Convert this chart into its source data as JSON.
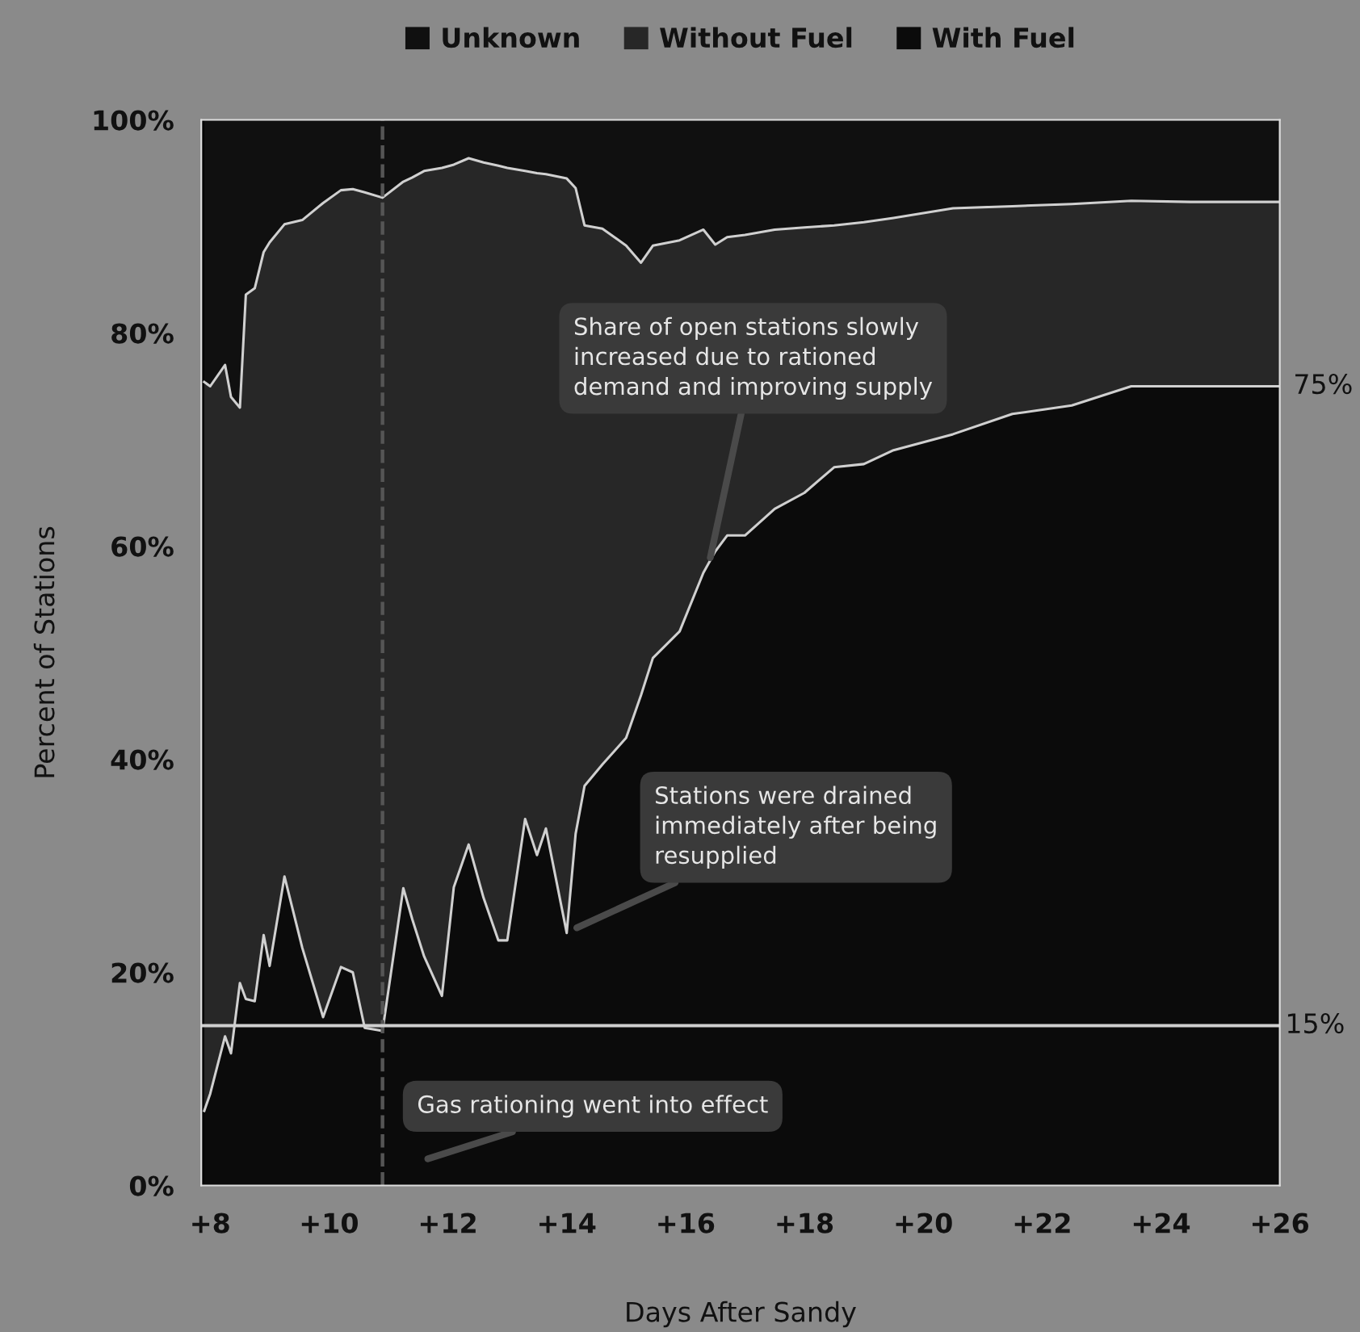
{
  "chart_data": {
    "type": "area",
    "stacked": true,
    "xlabel": "Days After Sandy",
    "ylabel": "Percent of Stations",
    "x": [
      7.9,
      8.0,
      8.25,
      8.35,
      8.5,
      8.6,
      8.75,
      8.9,
      9.0,
      9.25,
      9.55,
      9.9,
      10.2,
      10.4,
      10.6,
      10.9,
      11.25,
      11.4,
      11.6,
      11.9,
      12.1,
      12.35,
      12.6,
      12.85,
      13.0,
      13.3,
      13.5,
      13.65,
      14.0,
      14.15,
      14.3,
      14.6,
      15.0,
      15.25,
      15.45,
      15.9,
      16.3,
      16.5,
      16.7,
      17.0,
      17.5,
      18.0,
      18.5,
      19.0,
      19.5,
      20.5,
      21.5,
      22.5,
      23.5,
      24.5,
      26.0
    ],
    "series": [
      {
        "name": "With Fuel",
        "color": "#0b0b0b",
        "values": [
          7,
          8.6,
          14,
          12.4,
          19,
          17.5,
          17.3,
          23.5,
          20.6,
          29,
          22.3,
          15.8,
          20.5,
          20,
          14.8,
          14.5,
          27.9,
          25,
          21.5,
          17.8,
          28,
          32,
          27,
          23,
          23,
          34.4,
          31,
          33.5,
          23.7,
          33,
          37.5,
          39.5,
          42,
          46,
          49.5,
          52,
          57.5,
          59.5,
          61,
          61,
          63.5,
          65,
          67.4,
          67.7,
          69,
          70.5,
          72.4,
          73.2,
          75,
          75,
          75
        ]
      },
      {
        "name": "Without Fuel",
        "color": "#272727",
        "values": [
          68.4,
          66.4,
          63,
          61.6,
          54,
          66.1,
          66.9,
          64.1,
          67.9,
          61.2,
          68.3,
          76.4,
          72.9,
          73.5,
          78.4,
          78.2,
          66.3,
          69.6,
          73.7,
          77.7,
          67.8,
          64.4,
          69,
          72.7,
          72.5,
          60.8,
          64,
          61.4,
          70.8,
          60.6,
          52.6,
          50.3,
          46.2,
          40.6,
          38.7,
          36.7,
          32.2,
          28.8,
          28,
          28.2,
          26.2,
          24.9,
          22.7,
          22.7,
          21.8,
          21.2,
          19.5,
          18.9,
          17.4,
          17.3,
          17.3
        ]
      },
      {
        "name": "Unknown",
        "color": "#101010",
        "values": [
          24.6,
          25,
          23,
          26,
          27,
          16.4,
          15.8,
          12.4,
          11.5,
          9.8,
          9.4,
          7.8,
          6.6,
          6.5,
          6.8,
          7.3,
          5.8,
          5.4,
          4.8,
          4.5,
          4.2,
          3.6,
          4,
          4.3,
          4.5,
          4.8,
          5,
          5.1,
          5.5,
          6.4,
          9.9,
          10.2,
          11.8,
          13.4,
          11.8,
          11.3,
          10.3,
          11.7,
          11,
          10.8,
          10.3,
          10.1,
          9.9,
          9.6,
          9.2,
          8.3,
          8.1,
          7.9,
          7.6,
          7.7,
          7.7
        ]
      }
    ],
    "xlim": [
      7.85,
      26
    ],
    "ylim": [
      0,
      100
    ],
    "xticks": [
      {
        "value": 8,
        "label": "+8"
      },
      {
        "value": 10,
        "label": "+10"
      },
      {
        "value": 12,
        "label": "+12"
      },
      {
        "value": 14,
        "label": "+14"
      },
      {
        "value": 16,
        "label": "+16"
      },
      {
        "value": 18,
        "label": "+18"
      },
      {
        "value": 20,
        "label": "+20"
      },
      {
        "value": 22,
        "label": "+22"
      },
      {
        "value": 24,
        "label": "+24"
      },
      {
        "value": 26,
        "label": "+26"
      }
    ],
    "yticks": [
      {
        "value": 0,
        "label": "0%"
      },
      {
        "value": 20,
        "label": "20%"
      },
      {
        "value": 40,
        "label": "40%"
      },
      {
        "value": 60,
        "label": "60%"
      },
      {
        "value": 80,
        "label": "80%"
      },
      {
        "value": 100,
        "label": "100%"
      }
    ],
    "ref_lines": [
      {
        "axis": "x",
        "value": 10.9,
        "line_style": "dashed",
        "color": "#555555"
      },
      {
        "axis": "y",
        "value": 15,
        "label": "15%",
        "line_style": "solid",
        "color": "#cfcfcf"
      }
    ],
    "annotations": [
      {
        "text": "Share of open stations slowly\nincreased due to rationed\ndemand and improving supply",
        "x": 16.4,
        "y": 58.5
      },
      {
        "text": "Stations were drained\nimmediately after being\nresupplied",
        "x": 14.1,
        "y": 24
      },
      "Gas rationing went into effect",
      {
        "text": "75%",
        "x": 26,
        "y": 75
      }
    ],
    "legend": "top",
    "grid": false
  }
}
